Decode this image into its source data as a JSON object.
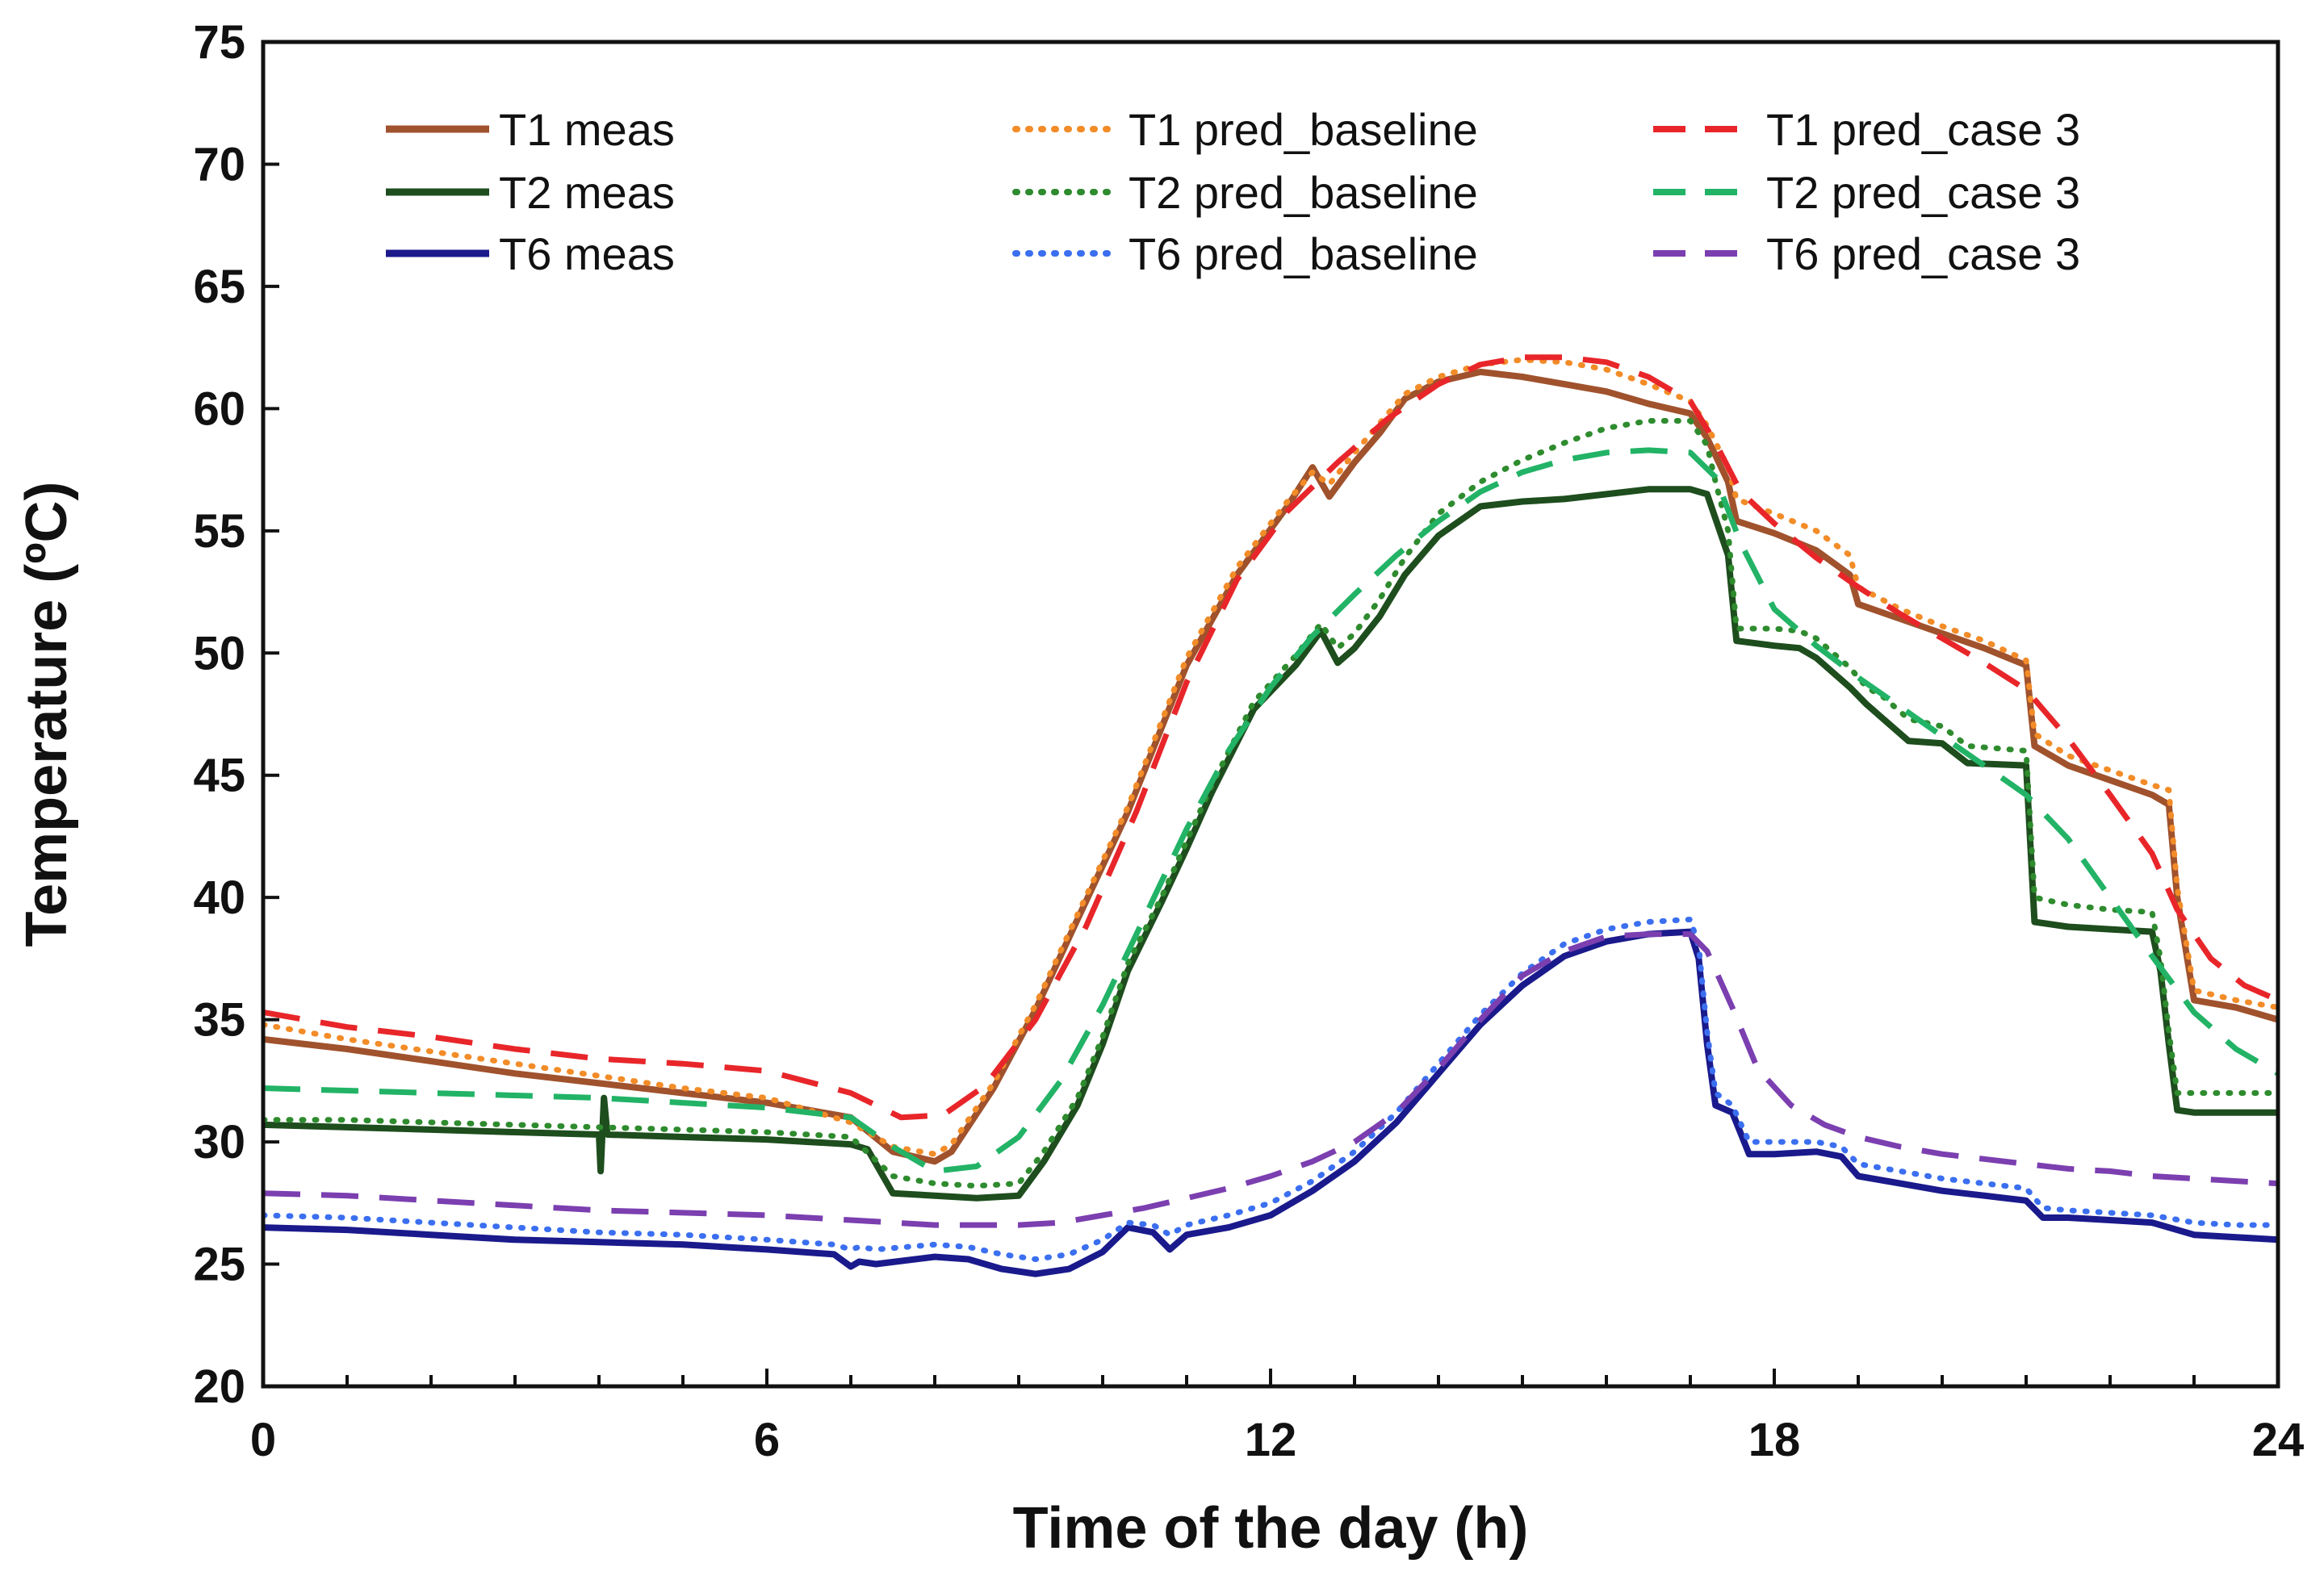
{
  "chart_data": {
    "type": "line",
    "title": "",
    "xlabel": "Time of the day (h)",
    "ylabel": "Temperature (ºC)",
    "xlim": [
      0,
      24
    ],
    "ylim": [
      20,
      75
    ],
    "xticks": [
      0,
      6,
      12,
      18,
      24
    ],
    "yticks": [
      20,
      25,
      30,
      35,
      40,
      45,
      50,
      55,
      60,
      65,
      70,
      75
    ],
    "grid": false,
    "legend_position": "top",
    "series": [
      {
        "name": "T1 meas",
        "color": "#a0522d",
        "style": "solid",
        "x": [
          0,
          1,
          2,
          3,
          4,
          5,
          6,
          7,
          7.5,
          8,
          8.2,
          8.7,
          9.2,
          9.7,
          10.3,
          11,
          11.6,
          12.2,
          12.5,
          12.7,
          13,
          13.3,
          13.6,
          14,
          14.5,
          15,
          15.5,
          16,
          16.5,
          17,
          17.2,
          17.45,
          17.55,
          18,
          18.5,
          18.9,
          19,
          19.5,
          20,
          20.5,
          21,
          21.1,
          21.5,
          22,
          22.5,
          22.7,
          22.8,
          23,
          23.5,
          24
        ],
        "values": [
          34.2,
          33.8,
          33.3,
          32.8,
          32.4,
          32.0,
          31.6,
          31.0,
          29.6,
          29.2,
          29.6,
          32.2,
          35.4,
          39.1,
          43.5,
          49.5,
          53.2,
          56.0,
          57.6,
          56.4,
          57.8,
          59.0,
          60.4,
          61.1,
          61.5,
          61.3,
          61.0,
          60.7,
          60.2,
          59.8,
          58.8,
          57.0,
          55.4,
          54.9,
          54.2,
          53.2,
          52.0,
          51.4,
          50.8,
          50.2,
          49.5,
          46.2,
          45.4,
          44.8,
          44.2,
          43.8,
          40.0,
          35.8,
          35.5,
          35.0
        ]
      },
      {
        "name": "T1 pred_baseline",
        "color": "#f28c28",
        "style": "dotted",
        "x": [
          0,
          1,
          2,
          3,
          4,
          5,
          6,
          7,
          7.5,
          8,
          8.2,
          8.7,
          9.2,
          9.7,
          10.3,
          11,
          11.6,
          12.2,
          12.5,
          12.7,
          13,
          13.3,
          13.6,
          14,
          14.5,
          15,
          15.5,
          16,
          16.5,
          17,
          17.2,
          17.45,
          17.55,
          18,
          18.5,
          18.9,
          19,
          19.5,
          20,
          20.5,
          21,
          21.1,
          21.5,
          22,
          22.5,
          22.7,
          22.8,
          23,
          23.5,
          24
        ],
        "values": [
          34.8,
          34.2,
          33.7,
          33.2,
          32.7,
          32.2,
          31.8,
          30.8,
          29.8,
          29.5,
          29.9,
          32.4,
          35.6,
          39.3,
          43.7,
          49.8,
          53.5,
          56.2,
          57.4,
          56.9,
          58.2,
          59.4,
          60.6,
          61.3,
          61.8,
          62.0,
          61.9,
          61.6,
          61.0,
          60.3,
          59.3,
          57.6,
          56.3,
          55.7,
          55.0,
          54.0,
          52.7,
          51.8,
          51.1,
          50.5,
          49.7,
          46.7,
          45.8,
          45.2,
          44.6,
          44.4,
          40.4,
          36.2,
          35.8,
          35.5
        ]
      },
      {
        "name": "T1 pred_case 3",
        "color": "#e8262a",
        "style": "dashed",
        "x": [
          0,
          1,
          2,
          3,
          4,
          5,
          6,
          7,
          7.6,
          8.1,
          8.6,
          9.2,
          9.8,
          10.4,
          11,
          11.6,
          12.2,
          12.8,
          13.4,
          14,
          14.5,
          15,
          15.5,
          16,
          16.5,
          17,
          17.3,
          17.6,
          18,
          18.5,
          19,
          19.5,
          20,
          20.5,
          21,
          21.5,
          22,
          22.5,
          22.8,
          23.2,
          23.6,
          24
        ],
        "values": [
          35.3,
          34.7,
          34.3,
          33.8,
          33.4,
          33.2,
          32.9,
          32.0,
          31.0,
          31.1,
          32.3,
          35.0,
          38.8,
          43.5,
          48.8,
          53.0,
          55.8,
          57.8,
          59.6,
          61.0,
          61.8,
          62.1,
          62.1,
          61.9,
          61.3,
          60.3,
          58.6,
          56.6,
          55.3,
          53.9,
          52.7,
          51.6,
          50.6,
          49.6,
          48.5,
          46.5,
          44.2,
          41.8,
          39.5,
          37.5,
          36.4,
          35.8
        ]
      },
      {
        "name": "T2 meas",
        "color": "#1e4d1e",
        "style": "solid",
        "x": [
          0,
          1,
          2,
          3,
          4,
          4.02,
          4.06,
          4.1,
          5,
          6,
          7,
          7.2,
          7.5,
          8,
          8.5,
          9,
          9.3,
          9.7,
          10,
          10.3,
          10.7,
          11,
          11.3,
          11.8,
          12.3,
          12.6,
          12.8,
          13,
          13.3,
          13.6,
          14,
          14.5,
          15,
          15.5,
          16,
          16.5,
          17,
          17.2,
          17.3,
          17.45,
          17.55,
          18,
          18.3,
          18.5,
          18.9,
          19.1,
          19.3,
          19.6,
          20,
          20.3,
          21,
          21.1,
          21.5,
          22,
          22.5,
          22.6,
          22.7,
          22.8,
          23,
          24
        ],
        "values": [
          30.7,
          30.6,
          30.5,
          30.4,
          30.3,
          28.8,
          31.8,
          30.3,
          30.2,
          30.1,
          29.9,
          29.7,
          27.9,
          27.8,
          27.7,
          27.8,
          29.2,
          31.5,
          34.0,
          37.0,
          39.8,
          42.0,
          44.3,
          47.7,
          49.5,
          50.9,
          49.6,
          50.2,
          51.5,
          53.2,
          54.8,
          56.0,
          56.2,
          56.3,
          56.5,
          56.7,
          56.7,
          56.5,
          55.5,
          54.0,
          50.5,
          50.3,
          50.2,
          49.8,
          48.6,
          47.9,
          47.3,
          46.4,
          46.3,
          45.5,
          45.4,
          39.0,
          38.8,
          38.7,
          38.6,
          37.0,
          34.0,
          31.3,
          31.2,
          31.2
        ]
      },
      {
        "name": "T2 pred_baseline",
        "color": "#2e8b2e",
        "style": "dotted",
        "x": [
          0,
          1,
          2,
          3,
          4,
          5,
          6,
          7,
          7.5,
          8,
          8.5,
          9,
          9.3,
          9.7,
          10,
          10.3,
          10.7,
          11,
          11.3,
          11.8,
          12.3,
          12.6,
          12.8,
          13,
          13.3,
          13.6,
          14,
          14.5,
          15,
          15.5,
          16,
          16.5,
          17,
          17.2,
          17.3,
          17.45,
          17.55,
          18,
          18.3,
          18.5,
          18.9,
          19.1,
          19.3,
          19.6,
          20,
          20.3,
          21,
          21.1,
          21.5,
          22,
          22.5,
          22.6,
          22.7,
          22.8,
          23,
          24
        ],
        "values": [
          30.9,
          30.9,
          30.8,
          30.7,
          30.6,
          30.5,
          30.4,
          30.2,
          28.6,
          28.3,
          28.2,
          28.3,
          29.6,
          31.8,
          34.3,
          37.3,
          40.0,
          42.3,
          44.6,
          48.0,
          49.9,
          51.2,
          50.2,
          50.8,
          52.2,
          53.9,
          55.7,
          57.0,
          57.9,
          58.6,
          59.2,
          59.5,
          59.5,
          58.5,
          57.0,
          55.0,
          51.0,
          51.0,
          50.9,
          50.6,
          49.4,
          48.6,
          48.2,
          47.3,
          47.0,
          46.2,
          46.0,
          40.0,
          39.7,
          39.5,
          39.4,
          37.5,
          34.5,
          32.0,
          32.0,
          32.0
        ]
      },
      {
        "name": "T2 pred_case 3",
        "color": "#22b366",
        "style": "dashed",
        "x": [
          0,
          1,
          2,
          3,
          4,
          5,
          6,
          7,
          7.5,
          8,
          8.5,
          9,
          9.5,
          10,
          10.5,
          11,
          11.5,
          12,
          12.5,
          13,
          13.5,
          14,
          14.5,
          15,
          15.5,
          16,
          16.5,
          17,
          17.3,
          17.6,
          18,
          18.5,
          19,
          19.5,
          20,
          20.5,
          21,
          21.5,
          22,
          22.5,
          23,
          23.5,
          24
        ],
        "values": [
          32.2,
          32.1,
          32.0,
          31.9,
          31.8,
          31.6,
          31.4,
          31.0,
          29.8,
          28.8,
          29.0,
          30.2,
          32.5,
          35.6,
          39.2,
          42.8,
          46.0,
          48.6,
          50.7,
          52.4,
          54.0,
          55.4,
          56.6,
          57.4,
          57.9,
          58.2,
          58.3,
          58.2,
          57.2,
          54.5,
          51.8,
          50.3,
          49.0,
          47.8,
          46.6,
          45.4,
          44.2,
          42.4,
          40.0,
          37.6,
          35.3,
          33.8,
          32.8
        ]
      },
      {
        "name": "T6 meas",
        "color": "#1a1a8c",
        "style": "solid",
        "x": [
          0,
          1,
          2,
          3,
          4,
          5,
          6,
          6.8,
          7,
          7.1,
          7.3,
          8,
          8.4,
          8.8,
          9.2,
          9.6,
          10,
          10.3,
          10.6,
          10.8,
          11,
          11.5,
          12,
          12.5,
          13,
          13.5,
          14,
          14.5,
          15,
          15.5,
          16,
          16.5,
          17,
          17.1,
          17.2,
          17.3,
          17.5,
          17.7,
          18,
          18.5,
          18.8,
          19,
          19.5,
          20,
          20.5,
          21,
          21.2,
          21.5,
          22,
          22.5,
          23,
          23.5,
          24
        ],
        "values": [
          26.5,
          26.4,
          26.2,
          26.0,
          25.9,
          25.8,
          25.6,
          25.4,
          24.9,
          25.1,
          25.0,
          25.3,
          25.2,
          24.8,
          24.6,
          24.8,
          25.5,
          26.5,
          26.3,
          25.6,
          26.2,
          26.5,
          27.0,
          28.0,
          29.2,
          30.8,
          32.8,
          34.8,
          36.4,
          37.6,
          38.2,
          38.5,
          38.6,
          37.5,
          34.0,
          31.5,
          31.2,
          29.5,
          29.5,
          29.6,
          29.4,
          28.6,
          28.3,
          28.0,
          27.8,
          27.6,
          26.9,
          26.9,
          26.8,
          26.7,
          26.2,
          26.1,
          26.0
        ]
      },
      {
        "name": "T6 pred_baseline",
        "color": "#3b6ff0",
        "style": "dotted",
        "x": [
          0,
          1,
          2,
          3,
          4,
          5,
          6,
          6.8,
          7,
          7.1,
          7.3,
          8,
          8.4,
          8.8,
          9.2,
          9.6,
          10,
          10.3,
          10.6,
          10.8,
          11,
          11.5,
          12,
          12.5,
          13,
          13.5,
          14,
          14.5,
          15,
          15.5,
          16,
          16.5,
          17,
          17.1,
          17.2,
          17.3,
          17.5,
          17.7,
          18,
          18.5,
          18.8,
          19,
          19.5,
          20,
          20.5,
          21,
          21.2,
          21.5,
          22,
          22.5,
          23,
          23.5,
          24
        ],
        "values": [
          27.0,
          26.9,
          26.7,
          26.5,
          26.3,
          26.2,
          26.0,
          25.8,
          25.6,
          25.7,
          25.6,
          25.8,
          25.7,
          25.4,
          25.2,
          25.4,
          26.0,
          26.7,
          26.6,
          26.2,
          26.6,
          27.0,
          27.5,
          28.4,
          29.6,
          31.2,
          33.2,
          35.2,
          36.9,
          38.1,
          38.7,
          39.0,
          39.1,
          38.0,
          34.5,
          32.0,
          31.5,
          30.0,
          30.0,
          30.0,
          29.8,
          29.1,
          28.8,
          28.5,
          28.3,
          28.1,
          27.3,
          27.2,
          27.1,
          27.0,
          26.7,
          26.6,
          26.6
        ]
      },
      {
        "name": "T6 pred_case 3",
        "color": "#7b3fb0",
        "style": "dashed",
        "x": [
          0,
          1,
          2,
          3,
          4,
          5,
          6,
          7,
          8,
          9,
          9.5,
          10,
          10.5,
          11,
          11.5,
          12,
          12.5,
          13,
          13.5,
          14,
          14.5,
          15,
          15.5,
          16,
          16.5,
          17,
          17.2,
          17.5,
          17.8,
          18.2,
          18.6,
          19,
          19.5,
          20,
          20.5,
          21,
          21.5,
          22,
          22.5,
          23,
          23.5,
          24
        ],
        "values": [
          27.9,
          27.8,
          27.6,
          27.4,
          27.2,
          27.1,
          27.0,
          26.8,
          26.6,
          26.6,
          26.7,
          27.0,
          27.3,
          27.7,
          28.1,
          28.6,
          29.2,
          30.0,
          31.2,
          33.0,
          35.0,
          36.8,
          37.8,
          38.4,
          38.5,
          38.5,
          37.8,
          35.5,
          33.0,
          31.5,
          30.7,
          30.2,
          29.8,
          29.5,
          29.3,
          29.1,
          28.9,
          28.8,
          28.6,
          28.5,
          28.4,
          28.3
        ]
      }
    ]
  }
}
